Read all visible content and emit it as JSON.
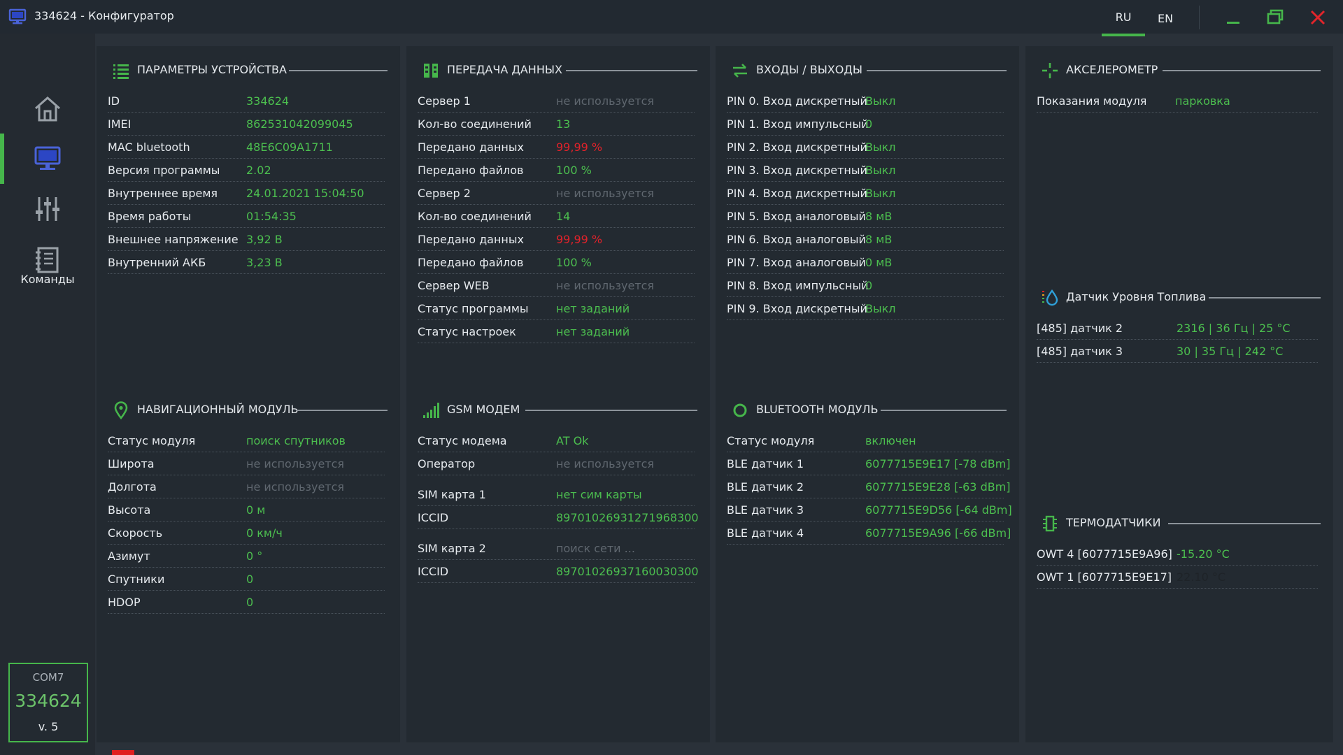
{
  "window": {
    "title": "334624 - Конфигуратор"
  },
  "languages": [
    {
      "label": "RU",
      "active": true
    },
    {
      "label": "EN",
      "active": false
    }
  ],
  "sidebar": {
    "items": [
      {
        "icon": "home-icon"
      },
      {
        "icon": "monitor-icon",
        "active": true
      },
      {
        "icon": "sliders-icon"
      },
      {
        "icon": "notebook-icon"
      }
    ],
    "commands_label": "Команды",
    "connection": {
      "port": "COM7",
      "id": "334624",
      "version": "v. 5"
    }
  },
  "colors": {
    "accent": "#46b64b",
    "value": "#4cbf4f",
    "dim": "#5f676f",
    "alert": "#e1222a",
    "panel": "#232a31",
    "background": "#2a3139"
  },
  "panels": {
    "device": {
      "title": "ПАРАМЕТРЫ УСТРОЙСТВА",
      "icon": "list-icon",
      "rows": [
        {
          "label": "ID",
          "value": "334624"
        },
        {
          "label": "IMEI",
          "value": "862531042099045"
        },
        {
          "label": "MAC bluetooth",
          "value": "48E6C09A1711"
        },
        {
          "label": "Версия программы",
          "value": "2.02"
        },
        {
          "label": "Внутреннее время",
          "value": "24.01.2021 15:04:50"
        },
        {
          "label": "Время работы",
          "value": "01:54:35"
        },
        {
          "label": "Внешнее напряжение",
          "value": "3,92 В"
        },
        {
          "label": "Внутренний АКБ",
          "value": "3,23 В"
        }
      ]
    },
    "navigation": {
      "title": "НАВИГАЦИОННЫЙ МОДУЛЬ",
      "icon": "location-pin-icon",
      "rows": [
        {
          "label": "Статус модуля",
          "value": "поиск спутников"
        },
        {
          "label": "Широта",
          "value": "не используется"
        },
        {
          "label": "Долгота",
          "value": "не используется"
        },
        {
          "label": "Высота",
          "value": "0 м"
        },
        {
          "label": "Скорость",
          "value": "0 км/ч"
        },
        {
          "label": "Азимут",
          "value": "0 °"
        },
        {
          "label": "Спутники",
          "value": "0"
        },
        {
          "label": "HDOP",
          "value": "0"
        }
      ]
    },
    "data_transfer": {
      "title": "ПЕРЕДАЧА ДАННЫХ",
      "icon": "columns-icon",
      "rows": [
        {
          "label": "Сервер 1",
          "value": "не используется"
        },
        {
          "label": "Кол-во соединений",
          "value": "13"
        },
        {
          "label": "Передано данных",
          "value": "99,99 %"
        },
        {
          "label": "Передано файлов",
          "value": "100 %"
        },
        {
          "label": "Сервер 2",
          "value": "не используется"
        },
        {
          "label": "Кол-во соединений",
          "value": "14"
        },
        {
          "label": "Передано данных",
          "value": "99,99 %"
        },
        {
          "label": "Передано файлов",
          "value": "100 %"
        },
        {
          "label": "Сервер WEB",
          "value": "не используется"
        },
        {
          "label": "Статус программы",
          "value": "нет заданий"
        },
        {
          "label": "Статус настроек",
          "value": "нет заданий"
        }
      ]
    },
    "gsm": {
      "title": "GSM МОДЕМ",
      "icon": "signal-bars-icon",
      "rows": [
        {
          "label": "Статус модема",
          "value": "AT Ok"
        },
        {
          "label": "Оператор",
          "value": "не используется"
        },
        {
          "label": "SIM карта 1",
          "value": "нет сим карты"
        },
        {
          "label": "ICCID",
          "value": "89701026931271968300"
        },
        {
          "label": "SIM карта 2",
          "value": "поиск сети ..."
        },
        {
          "label": "ICCID",
          "value": "89701026937160030300"
        }
      ]
    },
    "io": {
      "title": "ВХОДЫ / ВЫХОДЫ",
      "icon": "arrows-exchange-icon",
      "rows": [
        {
          "label": "PIN 0. Вход дискретный",
          "value": "Выкл"
        },
        {
          "label": "PIN 1. Вход импульсный",
          "value": "0"
        },
        {
          "label": "PIN 2. Вход дискретный",
          "value": "Выкл"
        },
        {
          "label": "PIN 3. Вход дискретный",
          "value": "Выкл"
        },
        {
          "label": "PIN 4. Вход дискретный",
          "value": "Выкл"
        },
        {
          "label": "PIN 5. Вход аналоговый",
          "value": "8 мВ"
        },
        {
          "label": "PIN 6. Вход аналоговый",
          "value": "8 мВ"
        },
        {
          "label": "PIN 7. Вход аналоговый",
          "value": "0 мВ"
        },
        {
          "label": "PIN 8. Вход импульсный",
          "value": "0"
        },
        {
          "label": "PIN 9. Вход дискретный",
          "value": "Выкл"
        }
      ]
    },
    "bluetooth": {
      "title": "BLUETOOTH МОДУЛЬ",
      "icon": "circle-icon",
      "rows": [
        {
          "label": "Статус модуля",
          "value": "включен"
        },
        {
          "label": "BLE датчик 1",
          "value": "6077715E9E17 [-78 dBm]"
        },
        {
          "label": "BLE датчик 2",
          "value": "6077715E9E28 [-63 dBm]"
        },
        {
          "label": "BLE датчик 3",
          "value": "6077715E9D56 [-64 dBm]"
        },
        {
          "label": "BLE датчик 4",
          "value": "6077715E9A96 [-66 dBm]"
        }
      ]
    },
    "accelerometer": {
      "title": "АКСЕЛЕРОМЕТР",
      "icon": "crosshair-icon",
      "rows": [
        {
          "label": "Показания модуля",
          "value": "парковка"
        }
      ]
    },
    "fuel": {
      "title": "Датчик Уровня Топлива",
      "icon": "fuel-drop-icon",
      "rows": [
        {
          "label": "[485] датчик 2",
          "value": "2316 | 36 Гц | 25 °С"
        },
        {
          "label": "[485] датчик 3",
          "value": "30 | 35 Гц | 242 °С"
        }
      ]
    },
    "thermo": {
      "title": "ТЕРМОДАТЧИКИ",
      "icon": "chip-icon",
      "rows": [
        {
          "label": "OWT 4 [6077715E9A96]",
          "value": "-15.20 °С"
        },
        {
          "label": "OWT 1 [6077715E9E17]",
          "value": "22.10 °С"
        }
      ]
    }
  }
}
